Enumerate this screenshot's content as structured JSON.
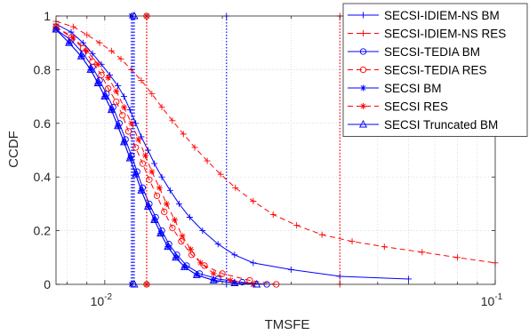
{
  "chart_data": {
    "type": "line",
    "xscale": "log",
    "xlim": [
      0.0075,
      0.1
    ],
    "ylim": [
      0,
      1
    ],
    "xlabel": "TMSFE",
    "ylabel": "CCDF",
    "grid": true,
    "legend_position": "top-right",
    "x_ticks": [
      {
        "value": 0.01,
        "base": "10",
        "exp": "-2"
      },
      {
        "value": 0.1,
        "base": "10",
        "exp": "-1"
      }
    ],
    "y_ticks": [
      "0",
      "0.2",
      "0.4",
      "0.6",
      "0.8",
      "1"
    ],
    "series": [
      {
        "name": "SECSI-IDIEM-NS BM",
        "color": "#0000ff",
        "dash": "solid",
        "marker": "plus",
        "x": [
          0.0075,
          0.0082,
          0.0088,
          0.0093,
          0.0098,
          0.0103,
          0.0108,
          0.0112,
          0.0116,
          0.012,
          0.0124,
          0.0129,
          0.0134,
          0.014,
          0.0147,
          0.0155,
          0.0165,
          0.0178,
          0.0195,
          0.0215,
          0.024,
          0.03,
          0.04,
          0.06
        ],
        "y": [
          0.97,
          0.94,
          0.9,
          0.86,
          0.82,
          0.78,
          0.74,
          0.7,
          0.65,
          0.6,
          0.55,
          0.5,
          0.45,
          0.4,
          0.35,
          0.3,
          0.25,
          0.2,
          0.15,
          0.11,
          0.08,
          0.055,
          0.03,
          0.02
        ],
        "threshold": 0.0205
      },
      {
        "name": "SECSI-IDIEM-NS RES",
        "color": "#ff0000",
        "dash": "dashed",
        "marker": "plus",
        "x": [
          0.0075,
          0.0083,
          0.009,
          0.0097,
          0.0104,
          0.011,
          0.0117,
          0.0124,
          0.0132,
          0.014,
          0.0149,
          0.0159,
          0.017,
          0.0183,
          0.0198,
          0.0216,
          0.024,
          0.027,
          0.031,
          0.036,
          0.043,
          0.052,
          0.065,
          0.08,
          0.1
        ],
        "y": [
          0.98,
          0.96,
          0.93,
          0.9,
          0.87,
          0.84,
          0.8,
          0.76,
          0.71,
          0.66,
          0.61,
          0.56,
          0.51,
          0.46,
          0.41,
          0.36,
          0.31,
          0.26,
          0.22,
          0.185,
          0.16,
          0.14,
          0.12,
          0.1,
          0.08
        ],
        "threshold": 0.04
      },
      {
        "name": "SECSI-TEDIA BM",
        "color": "#0000ff",
        "dash": "solid",
        "marker": "circle",
        "x": [
          0.0075,
          0.0082,
          0.0088,
          0.0093,
          0.0097,
          0.0101,
          0.0105,
          0.0109,
          0.0113,
          0.0117,
          0.0121,
          0.0125,
          0.013,
          0.0135,
          0.014,
          0.0146,
          0.0153,
          0.0162,
          0.0175,
          0.0195,
          0.0225,
          0.026
        ],
        "y": [
          0.95,
          0.91,
          0.86,
          0.81,
          0.76,
          0.71,
          0.66,
          0.6,
          0.54,
          0.48,
          0.42,
          0.36,
          0.3,
          0.25,
          0.2,
          0.15,
          0.11,
          0.07,
          0.04,
          0.02,
          0.008,
          0.0
        ],
        "threshold": 0.0118
      },
      {
        "name": "SECSI-TEDIA RES",
        "color": "#ff0000",
        "dash": "dashed",
        "marker": "circle",
        "x": [
          0.0075,
          0.0082,
          0.0088,
          0.0093,
          0.0098,
          0.0102,
          0.0107,
          0.0111,
          0.0115,
          0.012,
          0.0125,
          0.013,
          0.0136,
          0.0142,
          0.0149,
          0.0157,
          0.0167,
          0.018,
          0.02,
          0.0235,
          0.0275
        ],
        "y": [
          0.96,
          0.92,
          0.88,
          0.83,
          0.78,
          0.73,
          0.68,
          0.63,
          0.57,
          0.51,
          0.45,
          0.39,
          0.33,
          0.27,
          0.21,
          0.16,
          0.11,
          0.07,
          0.04,
          0.015,
          0.0
        ],
        "threshold": 0.0128
      },
      {
        "name": "SECSI BM",
        "color": "#0000ff",
        "dash": "solid",
        "marker": "asterisk",
        "x": [
          0.0075,
          0.0081,
          0.0087,
          0.0092,
          0.0096,
          0.01,
          0.0104,
          0.0108,
          0.0112,
          0.0116,
          0.012,
          0.0124,
          0.0129,
          0.0134,
          0.0139,
          0.0145,
          0.0152,
          0.016,
          0.0172,
          0.019,
          0.0215,
          0.024
        ],
        "y": [
          0.95,
          0.9,
          0.85,
          0.8,
          0.75,
          0.7,
          0.65,
          0.59,
          0.53,
          0.47,
          0.41,
          0.35,
          0.29,
          0.24,
          0.19,
          0.14,
          0.1,
          0.065,
          0.035,
          0.015,
          0.005,
          0.0
        ],
        "threshold": 0.0117
      },
      {
        "name": "SECSI RES",
        "color": "#ff0000",
        "dash": "dashed",
        "marker": "asterisk",
        "x": [
          0.0075,
          0.0083,
          0.009,
          0.0096,
          0.0102,
          0.0107,
          0.0112,
          0.0117,
          0.0122,
          0.0127,
          0.0132,
          0.0138,
          0.0144,
          0.0151,
          0.0158,
          0.0166,
          0.0176,
          0.019,
          0.021,
          0.024
        ],
        "y": [
          0.96,
          0.92,
          0.87,
          0.82,
          0.77,
          0.72,
          0.66,
          0.6,
          0.54,
          0.48,
          0.42,
          0.36,
          0.3,
          0.24,
          0.18,
          0.13,
          0.08,
          0.04,
          0.015,
          0.0
        ],
        "threshold": 0.0128
      },
      {
        "name": "SECSI Truncated BM",
        "color": "#0000ff",
        "dash": "solid",
        "marker": "triangle",
        "x": [
          0.0075,
          0.0081,
          0.0087,
          0.0092,
          0.0096,
          0.01,
          0.0104,
          0.0108,
          0.0112,
          0.0116,
          0.012,
          0.0124,
          0.0129,
          0.0134,
          0.0139,
          0.0145,
          0.0152,
          0.016,
          0.0172,
          0.019,
          0.0215,
          0.0245
        ],
        "y": [
          0.95,
          0.9,
          0.85,
          0.8,
          0.75,
          0.7,
          0.65,
          0.59,
          0.53,
          0.47,
          0.41,
          0.35,
          0.29,
          0.24,
          0.19,
          0.14,
          0.1,
          0.065,
          0.035,
          0.015,
          0.005,
          0.0
        ],
        "threshold": 0.0119
      }
    ]
  }
}
